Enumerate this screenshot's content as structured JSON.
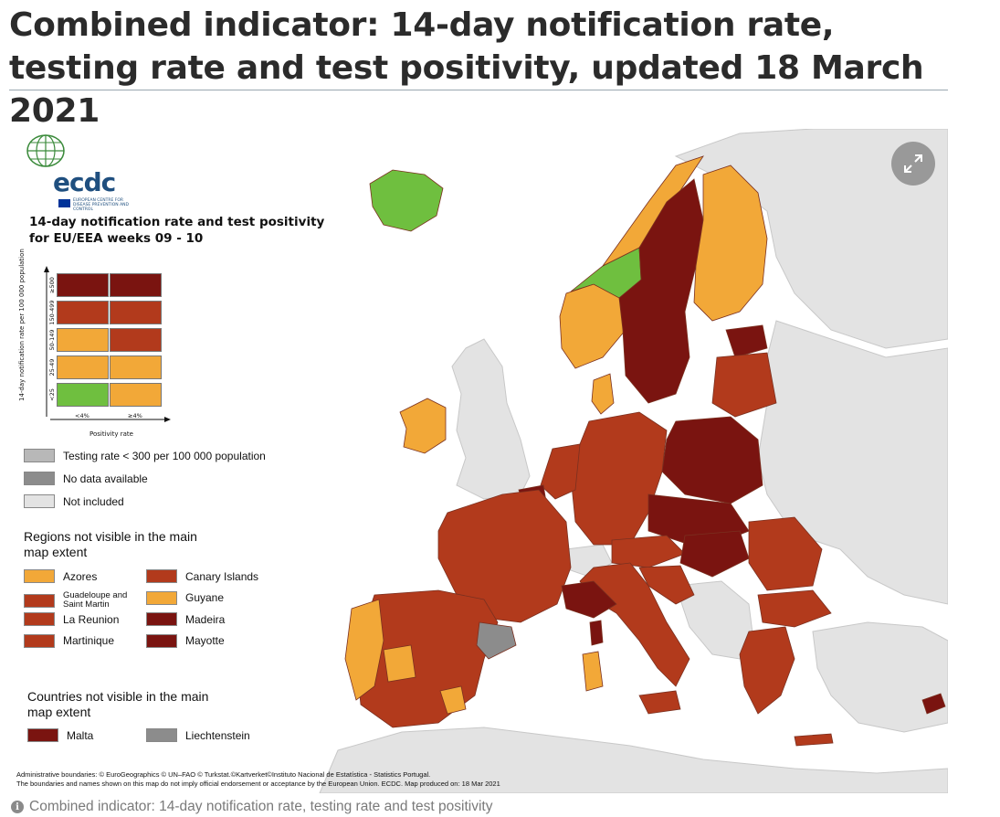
{
  "page": {
    "title": "Combined indicator: 14-day notification rate, testing rate and test positivity, updated 18 March 2021",
    "caption": "Combined indicator: 14-day notification rate, testing rate and test positivity"
  },
  "logo": {
    "word": "ecdc",
    "subtitle": "EUROPEAN CENTRE FOR DISEASE PREVENTION AND CONTROL",
    "icon": "globe-icon"
  },
  "colors": {
    "dark_red": "#7a1410",
    "red": "#b23a1c",
    "orange": "#f2a838",
    "green": "#6fbf3f",
    "testing_low": "#b8b8b8",
    "no_data": "#8c8c8c",
    "not_included": "#e3e3e3",
    "sea": "#ffffff"
  },
  "legend": {
    "title": "14-day notification rate and test positivity for EU/EEA weeks 09 - 10",
    "y_axis_label": "14-day notification rate per 100 000 population",
    "x_axis_label": "Positivity rate",
    "y_ticks": [
      "≥500",
      "150-499",
      "50-149",
      "25-49",
      "<25"
    ],
    "x_ticks": [
      "<4%",
      "≥4%"
    ],
    "matrix": [
      [
        "dark_red",
        "dark_red"
      ],
      [
        "red",
        "red"
      ],
      [
        "orange",
        "red"
      ],
      [
        "orange",
        "orange"
      ],
      [
        "green",
        "orange"
      ]
    ],
    "status_items": [
      {
        "label": "Testing rate < 300 per 100 000 population",
        "color": "testing_low"
      },
      {
        "label": "No data available",
        "color": "no_data"
      },
      {
        "label": "Not included",
        "color": "not_included"
      }
    ],
    "regions_heading": "Regions not visible in the main map extent",
    "regions": [
      {
        "label": "Azores",
        "color": "orange"
      },
      {
        "label": "Canary Islands",
        "color": "red"
      },
      {
        "label": "Guadeloupe and Saint Martin",
        "color": "red",
        "small": true
      },
      {
        "label": "Guyane",
        "color": "orange"
      },
      {
        "label": "La Reunion",
        "color": "red"
      },
      {
        "label": "Madeira",
        "color": "dark_red"
      },
      {
        "label": "Martinique",
        "color": "red"
      },
      {
        "label": "Mayotte",
        "color": "dark_red"
      }
    ],
    "countries_heading": "Countries not visible in the main map extent",
    "countries": [
      {
        "label": "Malta",
        "color": "dark_red"
      },
      {
        "label": "Liechtenstein",
        "color": "no_data"
      }
    ]
  },
  "attribution": {
    "line1": "Administrative boundaries: © EuroGeographics © UN–FAO © Turkstat.©Kartverket©Instituto Nacional de Estatística - Statistics Portugal.",
    "line2": "The boundaries and names shown on this map do not imply official endorsement or acceptance by the European Union. ECDC. Map produced on: 18 Mar 2021"
  },
  "controls": {
    "expand_icon": "expand-icon"
  }
}
